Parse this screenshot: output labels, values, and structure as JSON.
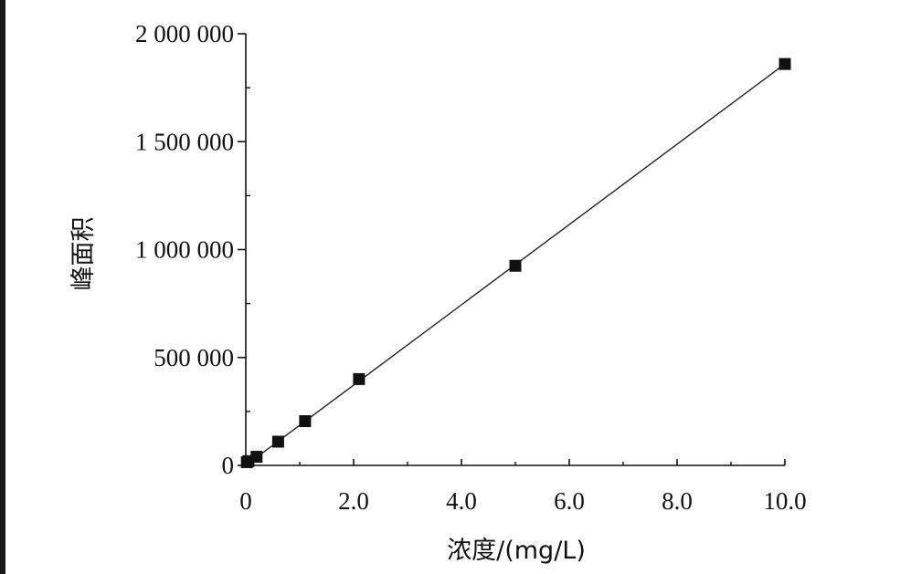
{
  "chart_data": {
    "type": "scatter",
    "xlabel": "浓度/(mg/L)",
    "ylabel": "峰面积",
    "xlim": [
      0,
      10.0
    ],
    "ylim": [
      0,
      2000000
    ],
    "x_ticks": [
      "0",
      "2.0",
      "4.0",
      "6.0",
      "8.0",
      "10.0"
    ],
    "y_ticks": [
      "0",
      "500 000",
      "1 000 000",
      "1 500 000",
      "2 000 000"
    ],
    "grid": false,
    "series": [
      {
        "marker": "square",
        "points": [
          {
            "x": 0.02,
            "y": 15000
          },
          {
            "x": 0.05,
            "y": 20000
          },
          {
            "x": 0.2,
            "y": 40000
          },
          {
            "x": 0.6,
            "y": 110000
          },
          {
            "x": 1.1,
            "y": 205000
          },
          {
            "x": 2.1,
            "y": 400000
          },
          {
            "x": 5.0,
            "y": 925000
          },
          {
            "x": 10.0,
            "y": 1860000
          }
        ]
      }
    ],
    "fit_line": {
      "x": [
        0,
        10.0
      ],
      "y": [
        0,
        1860000
      ]
    },
    "colors": {
      "marker": "#111111",
      "line": "#222222",
      "axis": "#111111"
    }
  }
}
